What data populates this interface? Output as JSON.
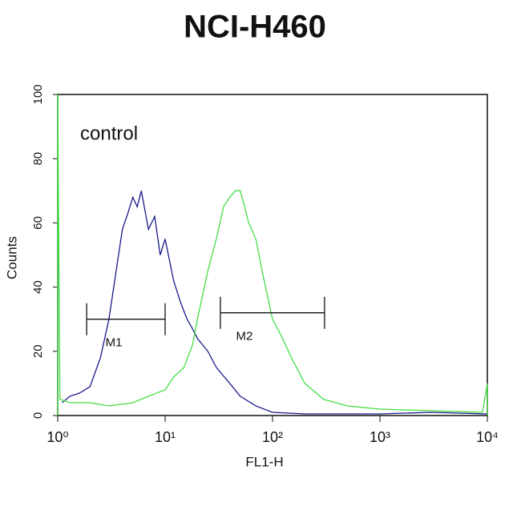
{
  "chart_data": {
    "type": "histogram-line",
    "title": "NCI-H460",
    "annotation": "control",
    "x_label": "FL1-H",
    "y_label": "Counts",
    "xscale": "log",
    "xlim": [
      1,
      10000
    ],
    "xticks": [
      {
        "value": 1,
        "label": "10⁰"
      },
      {
        "value": 10,
        "label": "10¹"
      },
      {
        "value": 100,
        "label": "10²"
      },
      {
        "value": 1000,
        "label": "10³"
      },
      {
        "value": 10000,
        "label": "10⁴"
      }
    ],
    "ylim": [
      0,
      100
    ],
    "yticks": [
      0,
      20,
      40,
      60,
      80,
      100
    ],
    "series": [
      {
        "color": "#1a1a8c",
        "x": [
          1.1,
          1.3,
          1.6,
          2,
          2.5,
          3,
          3.5,
          4,
          4.5,
          5,
          5.5,
          6,
          7,
          8,
          9,
          10,
          12,
          14,
          16,
          18,
          20,
          25,
          30,
          40,
          50,
          70,
          100,
          200,
          500,
          1000,
          3000,
          10000
        ],
        "values": [
          4,
          6,
          7,
          9,
          18,
          30,
          45,
          58,
          63,
          68,
          65,
          70,
          58,
          62,
          50,
          55,
          42,
          35,
          30,
          27,
          24,
          20,
          15,
          10,
          6,
          3,
          1,
          0.5,
          0.5,
          0.5,
          1,
          0.5
        ]
      },
      {
        "color": "#44dd44",
        "x": [
          1,
          1,
          1.05,
          1.3,
          2,
          3,
          5,
          7,
          10,
          12,
          15,
          18,
          20,
          25,
          30,
          35,
          40,
          45,
          50,
          55,
          60,
          70,
          80,
          100,
          120,
          150,
          200,
          300,
          500,
          1000,
          3000,
          9000,
          10000,
          10000
        ],
        "values": [
          0,
          100,
          5,
          4,
          4,
          3,
          4,
          6,
          8,
          12,
          15,
          22,
          30,
          45,
          55,
          65,
          68,
          70,
          70,
          65,
          60,
          55,
          45,
          30,
          25,
          18,
          10,
          5,
          3,
          2,
          1.5,
          1,
          10,
          0
        ]
      }
    ],
    "markers": [
      {
        "label": "M1",
        "x": [
          1.86,
          10
        ],
        "y": 30
      },
      {
        "label": "M2",
        "x": [
          32.7,
          305
        ],
        "y": 32
      }
    ]
  }
}
